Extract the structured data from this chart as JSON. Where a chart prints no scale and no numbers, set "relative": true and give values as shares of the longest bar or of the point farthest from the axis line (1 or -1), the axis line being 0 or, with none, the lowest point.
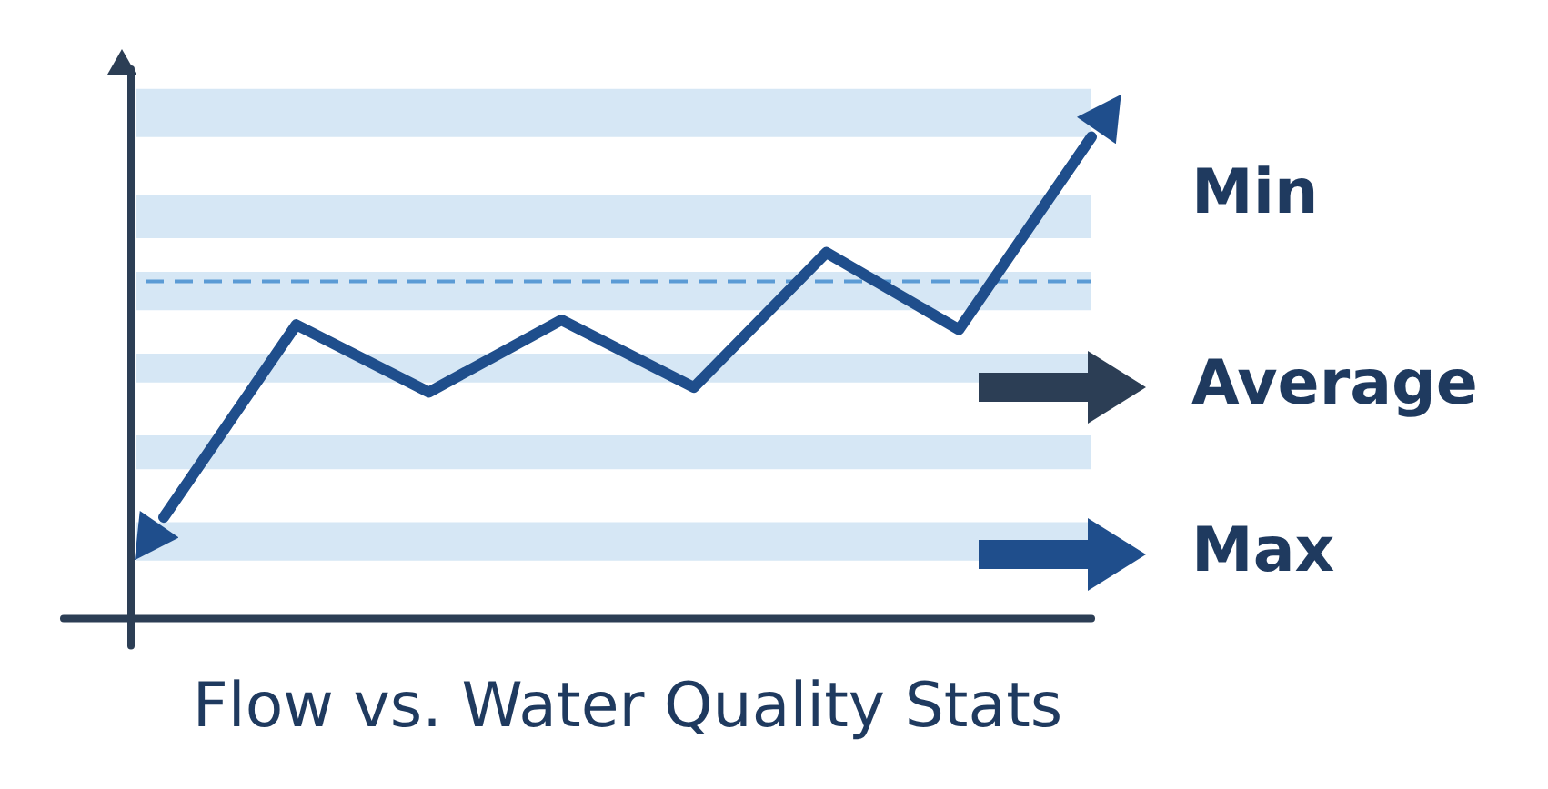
{
  "chart_data": {
    "type": "line",
    "title": "Flow vs. Water Quality Stats",
    "relative": true,
    "categories": [
      null,
      null,
      null,
      null,
      null,
      null,
      null,
      null
    ],
    "series": [
      {
        "color": "#1f4e8c",
        "values": [
          0.21,
          0.61,
          0.47,
          0.62,
          0.48,
          0.76,
          0.6,
          1
        ]
      }
    ],
    "ref_lines": [
      {
        "axis": "y",
        "value": 0.7,
        "color": "#5b9bd5",
        "line_style": "dashed"
      }
    ],
    "annotations": [
      "Min",
      "Average",
      "Max"
    ],
    "bands": [
      {
        "axis": "y",
        "from": 1,
        "to": 1.1,
        "color": "#d6e7f5"
      },
      {
        "axis": "y",
        "from": 0.79,
        "to": 0.88,
        "color": "#d6e7f5"
      },
      {
        "axis": "y",
        "from": 0.64,
        "to": 0.72,
        "color": "#d6e7f5"
      },
      {
        "axis": "y",
        "from": 0.49,
        "to": 0.55,
        "color": "#d6e7f5"
      },
      {
        "axis": "y",
        "from": 0.31,
        "to": 0.38,
        "color": "#d6e7f5"
      },
      {
        "axis": "y",
        "from": 0.12,
        "to": 0.2,
        "color": "#d6e7f5"
      }
    ],
    "marker": "none",
    "legend": false
  }
}
